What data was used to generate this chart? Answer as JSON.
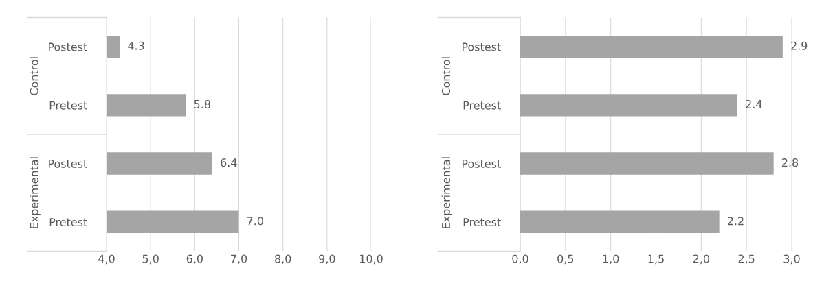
{
  "chart_data": [
    {
      "type": "bar",
      "orientation": "horizontal",
      "categories": [
        "Postest",
        "Pretest",
        "Postest",
        "Pretest"
      ],
      "values": [
        4.3,
        5.8,
        6.4,
        7.0
      ],
      "value_labels": [
        "4.3",
        "5.8",
        "6.4",
        "7.0"
      ],
      "color": "#a5a5a5",
      "xlim": [
        4,
        10
      ],
      "xticks": [
        {
          "value": 4,
          "label": "4,0"
        },
        {
          "value": 5,
          "label": "5,0"
        },
        {
          "value": 6,
          "label": "6,0"
        },
        {
          "value": 7,
          "label": "7,0"
        },
        {
          "value": 8,
          "label": "8,0"
        },
        {
          "value": 9,
          "label": "9,0"
        },
        {
          "value": 10,
          "label": "10,0"
        }
      ],
      "grid": "x",
      "annotations": [
        "Control",
        "Experimental"
      ]
    },
    {
      "type": "bar",
      "orientation": "horizontal",
      "categories": [
        "Postest",
        "Pretest",
        "Postest",
        "Pretest"
      ],
      "values": [
        2.9,
        2.4,
        2.8,
        2.2
      ],
      "value_labels": [
        "2.9",
        "2.4",
        "2.8",
        "2.2"
      ],
      "color": "#a5a5a5",
      "xlim": [
        0,
        3
      ],
      "xticks": [
        {
          "value": 0,
          "label": "0,0"
        },
        {
          "value": 0.5,
          "label": "0,5"
        },
        {
          "value": 1,
          "label": "1,0"
        },
        {
          "value": 1.5,
          "label": "1,5"
        },
        {
          "value": 2,
          "label": "2,0"
        },
        {
          "value": 2.5,
          "label": "2,5"
        },
        {
          "value": 3,
          "label": "3,0"
        }
      ],
      "grid": "x",
      "annotations": [
        "Control",
        "Experimental"
      ]
    }
  ]
}
